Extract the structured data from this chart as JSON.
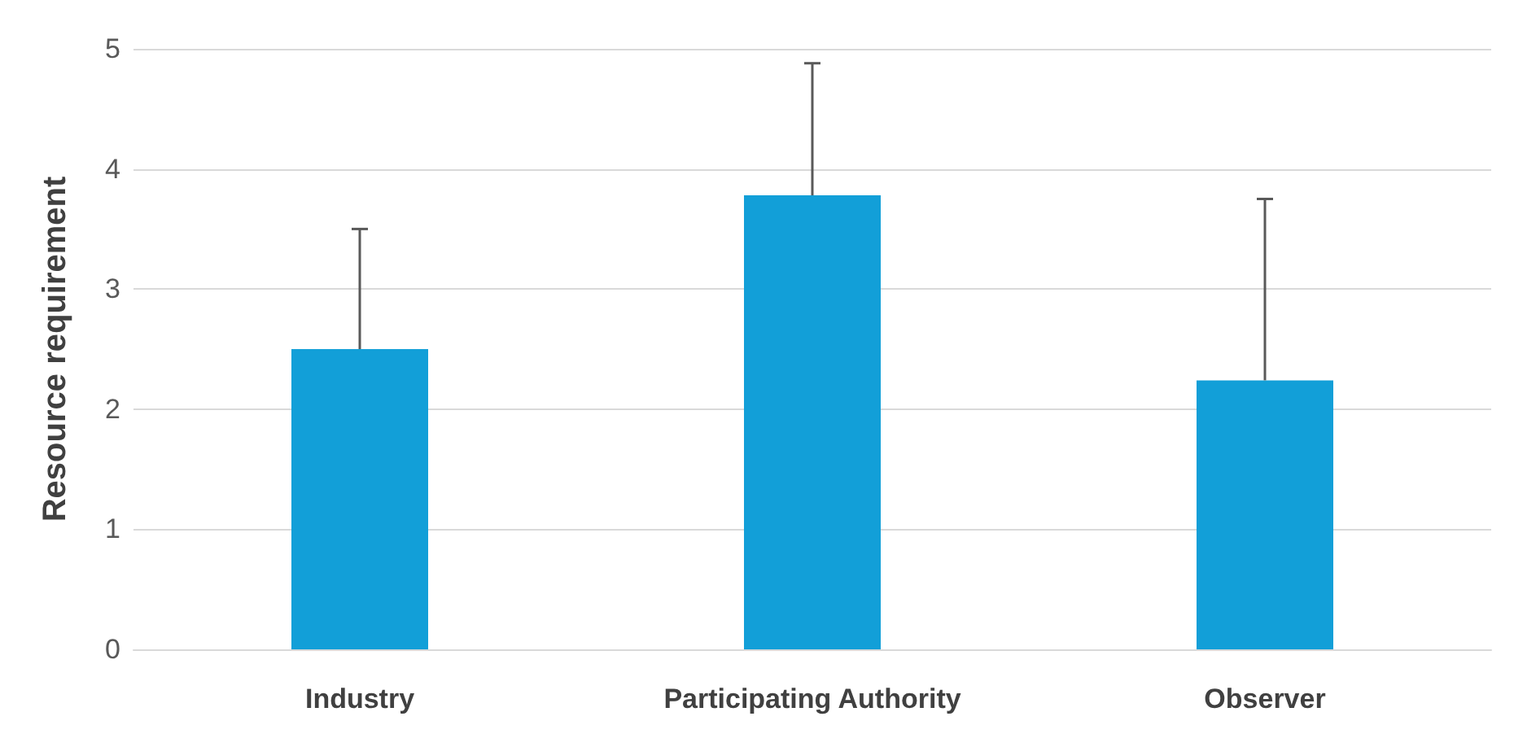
{
  "chart_data": {
    "type": "bar",
    "ylabel": "Resource requirement",
    "categories": [
      "Industry",
      "Participating Authority",
      "Observer"
    ],
    "values": [
      2.5,
      3.78,
      2.24
    ],
    "errors": [
      [
        2.5,
        3.5
      ],
      [
        3.78,
        4.88
      ],
      [
        2.24,
        3.75
      ]
    ],
    "color": "#129fd8",
    "ylim": [
      0,
      5
    ],
    "yticks": [
      0,
      1,
      2,
      3,
      4,
      5
    ],
    "grid": "y"
  }
}
